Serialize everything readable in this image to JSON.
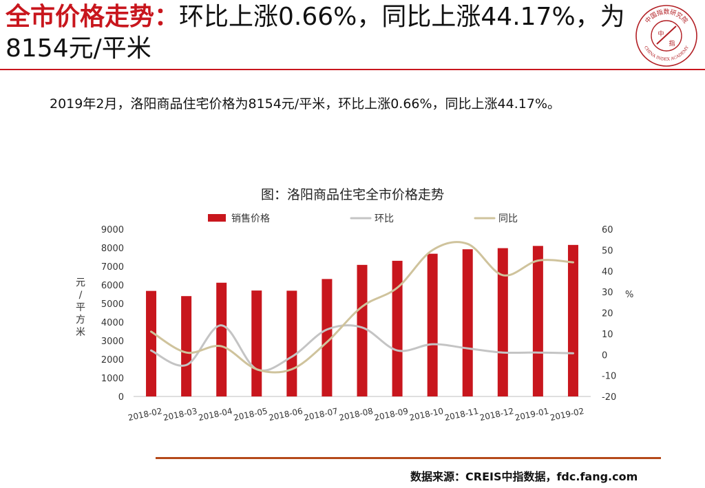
{
  "header": {
    "title_accent": "全市价格走势：",
    "title_rest": "环比上涨0.66%，同比上涨44.17%，为8154元/平米"
  },
  "logo": {
    "top_text": "中国指数研究院",
    "bottom_text": "CHINA INDEX ACADEMY",
    "center_text": "中",
    "center_text2": "指"
  },
  "summary": "2019年2月，洛阳商品住宅价格为8154元/平米，环比上涨0.66%，同比上涨44.17%。",
  "chart_data": {
    "type": "bar",
    "title": "图：洛阳商品住宅全市价格走势",
    "categories": [
      "2018-02",
      "2018-03",
      "2018-04",
      "2018-05",
      "2018-06",
      "2018-07",
      "2018-08",
      "2018-09",
      "2018-10",
      "2018-11",
      "2018-12",
      "2019-01",
      "2019-02"
    ],
    "series": [
      {
        "name": "销售价格",
        "type": "bar",
        "axis": "left",
        "color": "#c8161d",
        "values": [
          5680,
          5400,
          6120,
          5700,
          5690,
          6320,
          7080,
          7300,
          7680,
          7920,
          7980,
          8100,
          8154
        ]
      },
      {
        "name": "环比",
        "type": "line",
        "axis": "right",
        "color": "#c4c4c4",
        "values": [
          2,
          -5,
          14,
          -7,
          -1,
          12,
          13,
          2,
          5,
          3,
          1,
          1,
          0.66
        ]
      },
      {
        "name": "同比",
        "type": "line",
        "axis": "right",
        "color": "#cfc39c",
        "values": [
          11,
          1,
          4,
          -7,
          -7,
          6,
          23,
          32,
          50,
          53,
          38,
          45,
          44.17
        ]
      }
    ],
    "ylabel": "元/平方米",
    "y2label": "%",
    "ylim": [
      0,
      9000
    ],
    "yticks": [
      0,
      1000,
      2000,
      3000,
      4000,
      5000,
      6000,
      7000,
      8000,
      9000
    ],
    "y2lim": [
      -20,
      60
    ],
    "y2ticks": [
      -20,
      -10,
      0,
      10,
      20,
      30,
      40,
      50,
      60
    ],
    "legend": "top",
    "grid": false
  },
  "source": "数据来源：CREIS中指数据，fdc.fang.com"
}
